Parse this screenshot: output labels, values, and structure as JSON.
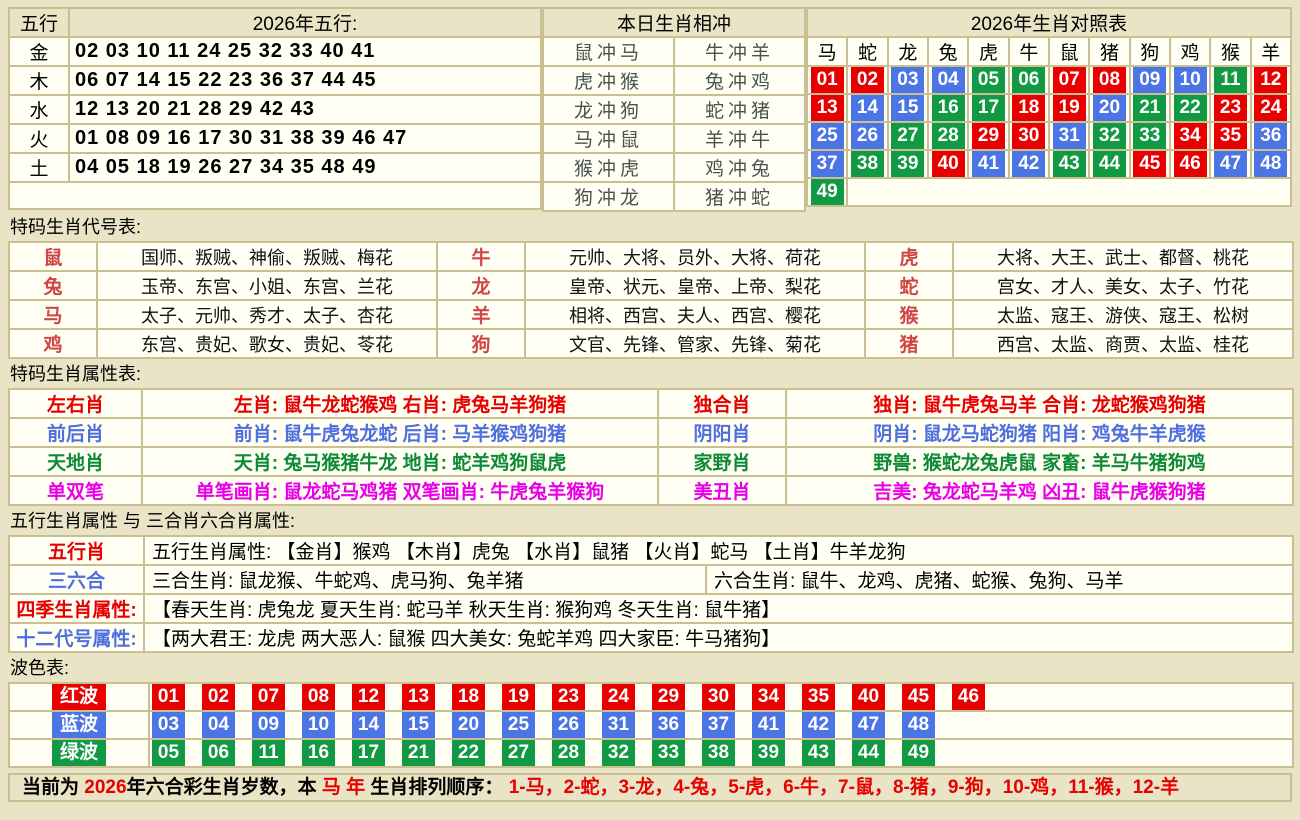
{
  "colors": {
    "red": "#e80000",
    "blue": "#4b74e4",
    "green": "#119943",
    "magenta": "#e800e8",
    "text_red": "#e60000",
    "text_blue": "#4f6ee0",
    "text_green": "#0e8a35",
    "zodiac_label_red": "#d04545",
    "clash_text": "#4a524f"
  },
  "top": {
    "five_elements": {
      "corner": "五行",
      "title": "2026年五行:",
      "rows": [
        {
          "element": "金",
          "numbers": "02 03 10 11 24 25 32 33 40 41"
        },
        {
          "element": "木",
          "numbers": "06 07 14 15 22 23 36 37 44 45"
        },
        {
          "element": "水",
          "numbers": "12 13 20 21 28 29 42 43"
        },
        {
          "element": "火",
          "numbers": "01 08 09 16 17 30 31 38 39 46 47"
        },
        {
          "element": "土",
          "numbers": "04 05 18 19 26 27 34 35 48 49"
        }
      ]
    },
    "clash": {
      "title": "本日生肖相冲",
      "rows": [
        [
          "鼠冲马",
          "牛冲羊"
        ],
        [
          "虎冲猴",
          "兔冲鸡"
        ],
        [
          "龙冲狗",
          "蛇冲猪"
        ],
        [
          "马冲鼠",
          "羊冲牛"
        ],
        [
          "猴冲虎",
          "鸡冲兔"
        ],
        [
          "狗冲龙",
          "猪冲蛇"
        ]
      ]
    },
    "zodiac_map": {
      "title": "2026年生肖对照表",
      "zodiacs": [
        "马",
        "蛇",
        "龙",
        "兔",
        "虎",
        "牛",
        "鼠",
        "猪",
        "狗",
        "鸡",
        "猴",
        "羊"
      ],
      "number_rows": [
        [
          "01",
          "02",
          "03",
          "04",
          "05",
          "06",
          "07",
          "08",
          "09",
          "10",
          "11",
          "12"
        ],
        [
          "13",
          "14",
          "15",
          "16",
          "17",
          "18",
          "19",
          "20",
          "21",
          "22",
          "23",
          "24"
        ],
        [
          "25",
          "26",
          "27",
          "28",
          "29",
          "30",
          "31",
          "32",
          "33",
          "34",
          "35",
          "36"
        ],
        [
          "37",
          "38",
          "39",
          "40",
          "41",
          "42",
          "43",
          "44",
          "45",
          "46",
          "47",
          "48"
        ],
        [
          "49"
        ]
      ]
    }
  },
  "codenames": {
    "title": "特码生肖代号表:",
    "rows": [
      [
        {
          "zodiac": "鼠",
          "names": "国师、叛贼、神偷、叛贼、梅花"
        },
        {
          "zodiac": "牛",
          "names": "元帅、大将、员外、大将、荷花"
        },
        {
          "zodiac": "虎",
          "names": "大将、大王、武士、都督、桃花"
        }
      ],
      [
        {
          "zodiac": "兔",
          "names": "玉帝、东宫、小姐、东宫、兰花"
        },
        {
          "zodiac": "龙",
          "names": "皇帝、状元、皇帝、上帝、梨花"
        },
        {
          "zodiac": "蛇",
          "names": "宫女、才人、美女、太子、竹花"
        }
      ],
      [
        {
          "zodiac": "马",
          "names": "太子、元帅、秀才、太子、杏花"
        },
        {
          "zodiac": "羊",
          "names": "相将、西宫、夫人、西宫、樱花"
        },
        {
          "zodiac": "猴",
          "names": "太监、寇王、游侠、寇王、松树"
        }
      ],
      [
        {
          "zodiac": "鸡",
          "names": "东宫、贵妃、歌女、贵妃、苓花"
        },
        {
          "zodiac": "狗",
          "names": "文官、先锋、管家、先锋、菊花"
        },
        {
          "zodiac": "猪",
          "names": "西宫、太监、商贾、太监、桂花"
        }
      ]
    ]
  },
  "attributes": {
    "title": "特码生肖属性表:",
    "rows": [
      {
        "color": "#e60000",
        "label1": "左右肖",
        "text1": "左肖: 鼠牛龙蛇猴鸡    右肖: 虎兔马羊狗猪",
        "label2": "独合肖",
        "text2": "独肖: 鼠牛虎兔马羊    合肖: 龙蛇猴鸡狗猪"
      },
      {
        "color": "#4f6ee0",
        "label1": "前后肖",
        "text1": "前肖: 鼠牛虎兔龙蛇    后肖: 马羊猴鸡狗猪",
        "label2": "阴阳肖",
        "text2": "阴肖: 鼠龙马蛇狗猪    阳肖: 鸡兔牛羊虎猴"
      },
      {
        "color": "#0e8a35",
        "label1": "天地肖",
        "text1": "天肖: 兔马猴猪牛龙    地肖: 蛇羊鸡狗鼠虎",
        "label2": "家野肖",
        "text2": "野兽: 猴蛇龙兔虎鼠    家畜: 羊马牛猪狗鸡"
      },
      {
        "color": "#e800e8",
        "label1": "单双笔",
        "text1": "单笔画肖: 鼠龙蛇马鸡猪    双笔画肖: 牛虎兔羊猴狗",
        "label2": "美丑肖",
        "text2": "吉美: 兔龙蛇马羊鸡    凶丑: 鼠牛虎猴狗猪"
      }
    ]
  },
  "five_combo": {
    "title": "五行生肖属性 与 三合肖六合肖属性:",
    "rows": [
      {
        "label": "五行肖",
        "label_color": "#e60000",
        "cells": [
          {
            "text": "五行生肖属性: 【金肖】猴鸡 【木肖】虎兔 【水肖】鼠猪 【火肖】蛇马 【土肖】牛羊龙狗",
            "span": 2
          }
        ]
      },
      {
        "label": "三六合",
        "label_color": "#4f6ee0",
        "cells": [
          {
            "text": "三合生肖: 鼠龙猴、牛蛇鸡、虎马狗、兔羊猪",
            "span": 1
          },
          {
            "text": "六合生肖: 鼠牛、龙鸡、虎猪、蛇猴、兔狗、马羊",
            "span": 1
          }
        ]
      },
      {
        "label": "四季生肖属性:",
        "label_color": "#e60000",
        "cells": [
          {
            "text": "【春天生肖: 虎兔龙 夏天生肖: 蛇马羊 秋天生肖: 猴狗鸡 冬天生肖: 鼠牛猪】",
            "span": 2
          }
        ]
      },
      {
        "label": "十二代号属性:",
        "label_color": "#4f6ee0",
        "cells": [
          {
            "text": "【两大君王: 龙虎 两大恶人: 鼠猴 四大美女: 兔蛇羊鸡 四大家臣: 牛马猪狗】",
            "span": 2
          }
        ]
      }
    ]
  },
  "waves": {
    "title": "波色表:",
    "rows": [
      {
        "label": "红波",
        "color_key": "red",
        "numbers": [
          "01",
          "02",
          "07",
          "08",
          "12",
          "13",
          "18",
          "19",
          "23",
          "24",
          "29",
          "30",
          "34",
          "35",
          "40",
          "45",
          "46"
        ]
      },
      {
        "label": "蓝波",
        "color_key": "blue",
        "numbers": [
          "03",
          "04",
          "09",
          "10",
          "14",
          "15",
          "20",
          "25",
          "26",
          "31",
          "36",
          "37",
          "41",
          "42",
          "47",
          "48"
        ]
      },
      {
        "label": "绿波",
        "color_key": "green",
        "numbers": [
          "05",
          "06",
          "11",
          "16",
          "17",
          "21",
          "22",
          "27",
          "28",
          "32",
          "33",
          "38",
          "39",
          "43",
          "44",
          "49"
        ]
      }
    ]
  },
  "footer": {
    "segments": [
      {
        "text": "当前为 ",
        "red": false
      },
      {
        "text": "2026",
        "red": true
      },
      {
        "text": "年六合彩生肖岁数，本 ",
        "red": false
      },
      {
        "text": "马 年",
        "red": true
      },
      {
        "text": " 生肖排列顺序： ",
        "red": false
      },
      {
        "text": "1-马，2-蛇，3-龙，4-兔，5-虎，6-牛，7-鼠，8-猪，9-狗，10-鸡，11-猴，12-羊",
        "red": true
      }
    ]
  }
}
